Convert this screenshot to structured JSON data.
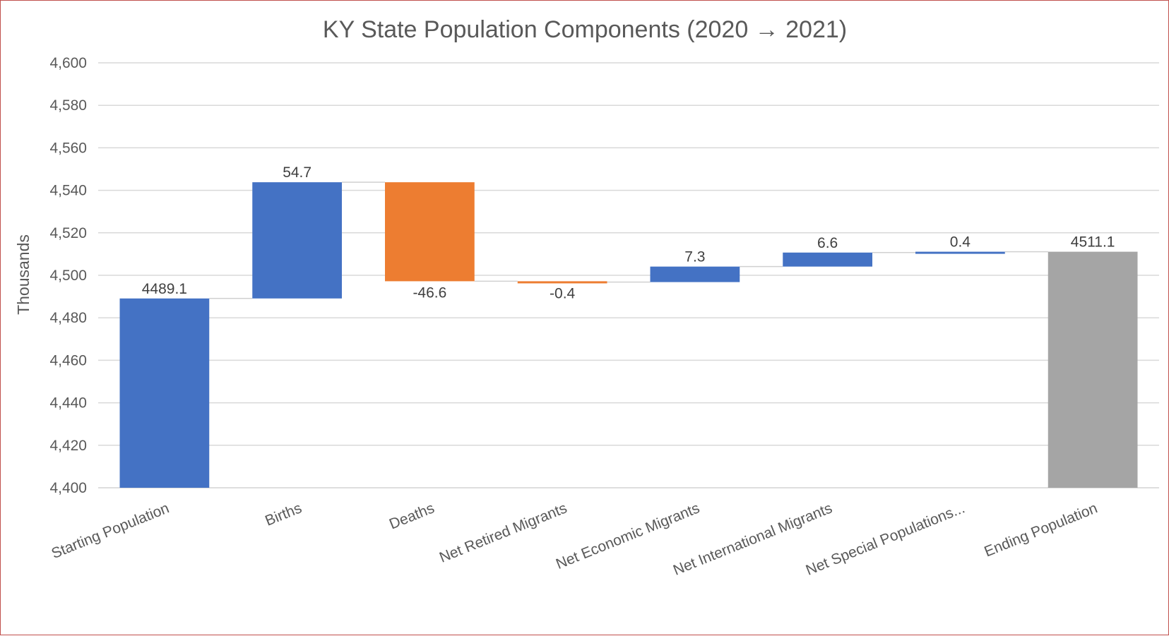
{
  "chart_data": {
    "type": "bar",
    "subtype": "waterfall",
    "title": "KY State Population Components (2020 → 2021)",
    "ylabel": "Thousands",
    "ylim": [
      4400,
      4600
    ],
    "yticks": [
      4400,
      4420,
      4440,
      4460,
      4480,
      4500,
      4520,
      4540,
      4560,
      4580,
      4600
    ],
    "ytick_labels": [
      "4,400",
      "4,420",
      "4,440",
      "4,460",
      "4,480",
      "4,500",
      "4,520",
      "4,540",
      "4,560",
      "4,580",
      "4,600"
    ],
    "grid": true,
    "legend": "none",
    "categories": [
      "Starting Population",
      "Births",
      "Deaths",
      "Net Retired Migrants",
      "Net Economic Migrants",
      "Net International Migrants",
      "Net Special Populations...",
      "Ending Population"
    ],
    "values": [
      4489.1,
      54.7,
      -46.6,
      -0.4,
      7.3,
      6.6,
      0.4,
      4511.1
    ],
    "value_labels": [
      "4489.1",
      "54.7",
      "-46.6",
      "-0.4",
      "7.3",
      "6.6",
      "0.4",
      "4511.1"
    ],
    "kinds": [
      "total",
      "delta",
      "delta",
      "delta",
      "delta",
      "delta",
      "delta",
      "total"
    ],
    "colors": {
      "increase": "#4472c4",
      "decrease": "#ed7d31",
      "total_start": "#4472c4",
      "total_end": "#a5a5a5",
      "grid": "#d9d9d9",
      "connector": "#d0d0d0",
      "text": "#595959"
    }
  }
}
